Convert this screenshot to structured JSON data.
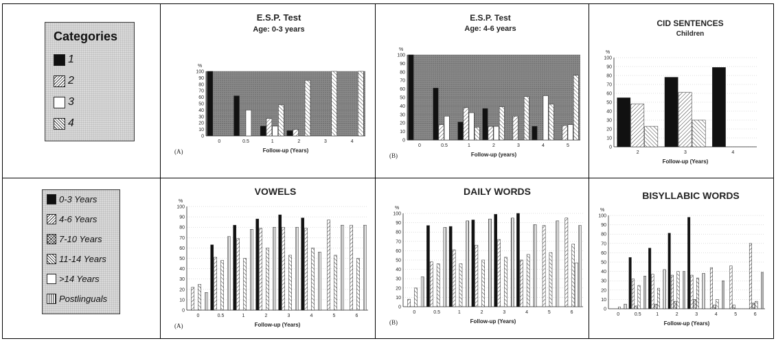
{
  "legend_top": {
    "title": "Categories",
    "items": [
      {
        "label": "1",
        "pattern": "solid"
      },
      {
        "label": "2",
        "pattern": "diag"
      },
      {
        "label": "3",
        "pattern": "empty"
      },
      {
        "label": "4",
        "pattern": "back"
      }
    ]
  },
  "legend_bottom": {
    "items": [
      {
        "label": "0-3 Years",
        "pattern": "solid"
      },
      {
        "label": "4-6 Years",
        "pattern": "diag"
      },
      {
        "label": "7-10 Years",
        "pattern": "cross"
      },
      {
        "label": "11-14 Years",
        "pattern": "back"
      },
      {
        "label": ">14 Years",
        "pattern": "empty"
      },
      {
        "label": "Postlinguals",
        "pattern": "vert"
      }
    ]
  },
  "chart_data": [
    {
      "type": "bar",
      "title": "E.S.P. Test",
      "subtitle": "Age: 0-3 years",
      "panel": "(A)",
      "xlabel": "Follow-up (Years)",
      "ylabel": "%",
      "ylim": [
        0,
        100
      ],
      "background": "dark",
      "categories": [
        "0",
        "0.5",
        "1",
        "2",
        "3",
        "4"
      ],
      "series": [
        {
          "name": "1",
          "pattern": "solid",
          "values": [
            100,
            62,
            15,
            8,
            0,
            0
          ]
        },
        {
          "name": "2",
          "pattern": "diag",
          "values": [
            0,
            0,
            27,
            10,
            0,
            0
          ]
        },
        {
          "name": "3",
          "pattern": "empty",
          "values": [
            0,
            40,
            15,
            0,
            0,
            0
          ]
        },
        {
          "name": "4",
          "pattern": "back",
          "values": [
            0,
            0,
            48,
            86,
            100,
            100
          ]
        }
      ]
    },
    {
      "type": "bar",
      "title": "E.S.P. Test",
      "subtitle": "Age: 4-6 years",
      "panel": "(B)",
      "xlabel": "Follow-up (years)",
      "ylabel": "%",
      "ylim": [
        0,
        100
      ],
      "background": "dark",
      "categories": [
        "0",
        "0.5",
        "1",
        "2",
        "3",
        "4",
        "5"
      ],
      "series": [
        {
          "name": "1",
          "pattern": "solid",
          "values": [
            100,
            61,
            21,
            37,
            0,
            16,
            0
          ]
        },
        {
          "name": "2",
          "pattern": "diag",
          "values": [
            0,
            18,
            38,
            16,
            28,
            0,
            17
          ]
        },
        {
          "name": "3",
          "pattern": "empty",
          "values": [
            0,
            28,
            32,
            16,
            0,
            52,
            18
          ]
        },
        {
          "name": "4",
          "pattern": "back",
          "values": [
            0,
            0,
            15,
            39,
            51,
            42,
            76
          ]
        }
      ]
    },
    {
      "type": "bar",
      "title": "CID SENTENCES",
      "subtitle": "Children",
      "panel": "",
      "xlabel": "Follow-up (Years)",
      "ylabel": "%",
      "ylim": [
        0,
        100
      ],
      "background": "light",
      "categories": [
        "2",
        "3",
        "4"
      ],
      "series": [
        {
          "name": "1",
          "pattern": "solid",
          "values": [
            55,
            78,
            89
          ]
        },
        {
          "name": "2",
          "pattern": "diag",
          "values": [
            48,
            61,
            0
          ]
        },
        {
          "name": "4",
          "pattern": "back",
          "values": [
            23,
            30,
            0
          ]
        }
      ]
    },
    {
      "type": "bar",
      "title": "VOWELS",
      "subtitle": "",
      "panel": "(A)",
      "xlabel": "Follow-up (Years)",
      "ylabel": "%",
      "ylim": [
        0,
        100
      ],
      "background": "light",
      "categories": [
        "0",
        "0.5",
        "1",
        "2",
        "3",
        "4",
        "5",
        "6"
      ],
      "series": [
        {
          "name": "0-3 Years",
          "pattern": "solid",
          "values": [
            0,
            63,
            82,
            88,
            92,
            89,
            0,
            0
          ]
        },
        {
          "name": "4-6 Years",
          "pattern": "diag",
          "values": [
            22,
            51,
            69,
            79,
            80,
            79,
            87,
            82
          ]
        },
        {
          "name": "7-10 Years",
          "pattern": "cross",
          "values": [
            0,
            0,
            0,
            0,
            0,
            0,
            0,
            0
          ]
        },
        {
          "name": "11-14 Years",
          "pattern": "back",
          "values": [
            25,
            48,
            50,
            60,
            53,
            60,
            53,
            50
          ]
        },
        {
          "name": ">14 Years",
          "pattern": "empty",
          "values": [
            0,
            0,
            0,
            0,
            0,
            0,
            0,
            0
          ]
        },
        {
          "name": "Postlinguals",
          "pattern": "vert",
          "values": [
            17,
            71,
            78,
            80,
            80,
            56,
            82,
            82
          ]
        }
      ]
    },
    {
      "type": "bar",
      "title": "DAILY WORDS",
      "subtitle": "",
      "panel": "(B)",
      "xlabel": "Follow-up (Years)",
      "ylabel": "%",
      "ylim": [
        0,
        100
      ],
      "background": "light",
      "categories": [
        "0",
        "0.5",
        "1",
        "2",
        "3",
        "4",
        "5",
        "6"
      ],
      "series": [
        {
          "name": "0-3 Years",
          "pattern": "solid",
          "values": [
            0,
            87,
            86,
            93,
            99,
            100,
            0,
            0
          ]
        },
        {
          "name": "4-6 Years",
          "pattern": "diag",
          "values": [
            8,
            48,
            61,
            66,
            72,
            50,
            87,
            95
          ]
        },
        {
          "name": "7-10 Years",
          "pattern": "cross",
          "values": [
            0,
            0,
            0,
            0,
            0,
            0,
            0,
            0
          ]
        },
        {
          "name": "11-14 Years",
          "pattern": "back",
          "values": [
            20,
            46,
            46,
            50,
            53,
            56,
            58,
            67
          ]
        },
        {
          "name": ">14 Years",
          "pattern": "empty",
          "values": [
            0,
            0,
            0,
            0,
            0,
            0,
            0,
            47
          ]
        },
        {
          "name": "Postlinguals",
          "pattern": "vert",
          "values": [
            32,
            85,
            92,
            94,
            95,
            88,
            92,
            87
          ]
        }
      ]
    },
    {
      "type": "bar",
      "title": "BISYLLABIC WORDS",
      "subtitle": "",
      "panel": "",
      "xlabel": "Follow-up (Years)",
      "ylabel": "%",
      "ylim": [
        0,
        100
      ],
      "background": "light",
      "categories": [
        "0",
        "0.5",
        "1",
        "2",
        "3",
        "4",
        "5",
        "6"
      ],
      "series": [
        {
          "name": "0-3 Years",
          "pattern": "solid",
          "values": [
            0,
            55,
            65,
            81,
            98,
            0,
            0,
            0
          ]
        },
        {
          "name": "4-6 Years",
          "pattern": "diag",
          "values": [
            0,
            32,
            37,
            36,
            36,
            44,
            46,
            70
          ]
        },
        {
          "name": "7-10 Years",
          "pattern": "cross",
          "values": [
            0,
            3,
            5,
            8,
            10,
            4,
            4,
            6
          ]
        },
        {
          "name": "11-14 Years",
          "pattern": "back",
          "values": [
            2,
            25,
            22,
            40,
            33,
            10,
            0,
            8
          ]
        },
        {
          "name": ">14 Years",
          "pattern": "empty",
          "values": [
            0,
            0,
            0,
            0,
            0,
            0,
            0,
            0
          ]
        },
        {
          "name": "Postlinguals",
          "pattern": "vert",
          "values": [
            5,
            35,
            42,
            40,
            38,
            30,
            0,
            39
          ]
        }
      ]
    }
  ]
}
